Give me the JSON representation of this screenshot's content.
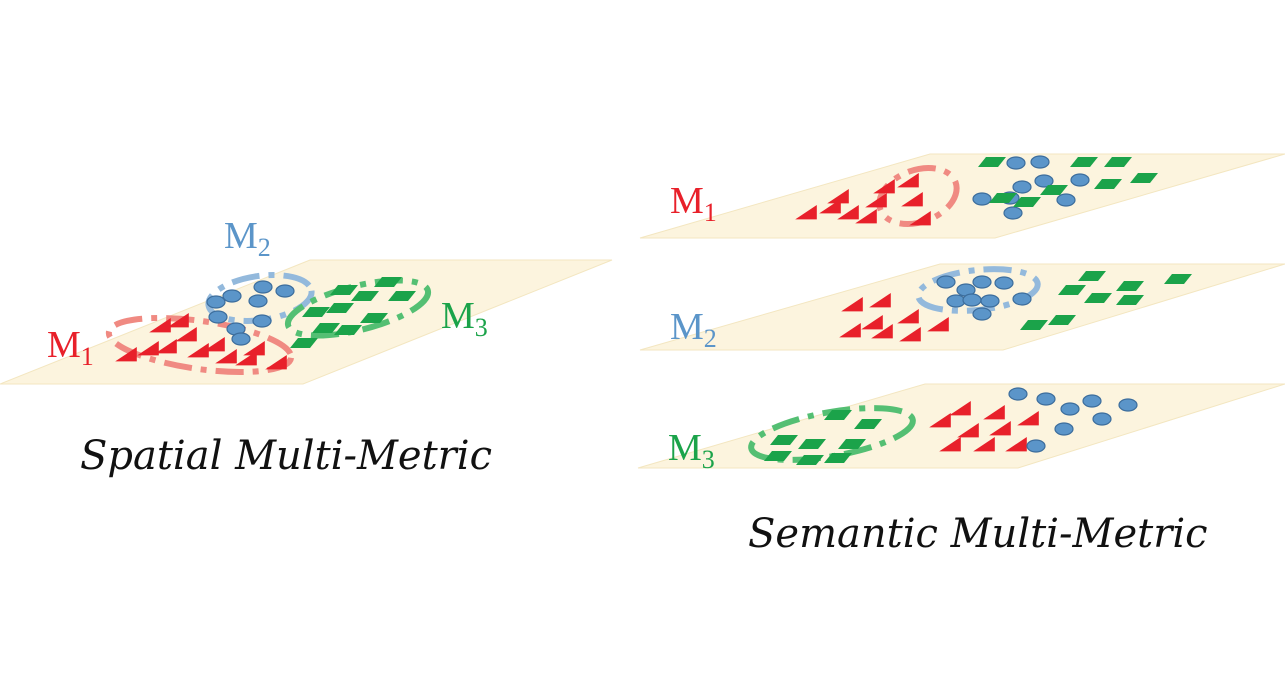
{
  "colors": {
    "plane_fill": "#fcf4de",
    "plane_edge": "#f3e6c0",
    "m1": "#e8202a",
    "m1_ring": "#f08a82",
    "m2": "#5b95c9",
    "m2_ring": "#93b9dc",
    "m3": "#1ba34a",
    "m3_ring": "#54bf73",
    "text": "#111111"
  },
  "spatial": {
    "caption": "Spatial Multi-Metric",
    "labels": {
      "m1": {
        "main": "M",
        "sub": "1"
      },
      "m2": {
        "main": "M",
        "sub": "2"
      },
      "m3": {
        "main": "M",
        "sub": "3"
      }
    }
  },
  "semantic": {
    "caption": "Semantic Multi-Metric",
    "planes": [
      {
        "label": {
          "main": "M",
          "sub": "1"
        }
      },
      {
        "label": {
          "main": "M",
          "sub": "2"
        }
      },
      {
        "label": {
          "main": "M",
          "sub": "3"
        }
      }
    ]
  },
  "icons": {
    "m1_marker": "red-triangle-icon",
    "m2_marker": "blue-ellipse-icon",
    "m3_marker": "green-parallelogram-icon"
  }
}
